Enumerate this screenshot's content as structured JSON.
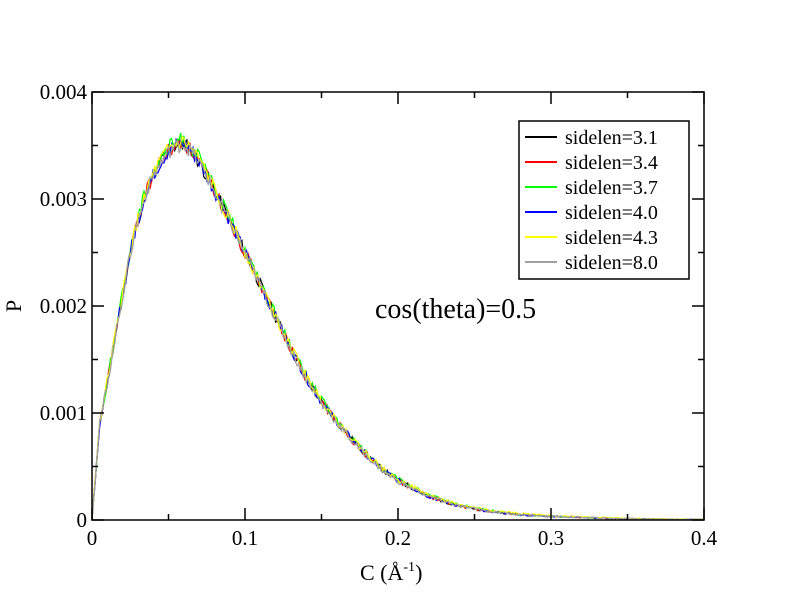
{
  "chart_data": {
    "type": "line",
    "xlabel": "C (Å",
    "xlabel_sup": "-1",
    "xlabel_tail": ")",
    "ylabel": "P",
    "xlim": [
      0,
      0.4
    ],
    "ylim": [
      0,
      0.004
    ],
    "x_ticks": [
      0,
      0.1,
      0.2,
      0.3,
      0.4
    ],
    "x_tick_labels": [
      "0",
      "0.1",
      "0.2",
      "0.3",
      "0.4"
    ],
    "y_ticks": [
      0,
      0.001,
      0.002,
      0.003,
      0.004
    ],
    "y_tick_labels": [
      "0",
      "0.001",
      "0.002",
      "0.003",
      "0.004"
    ],
    "annotation": "cos(theta)=0.5",
    "legend_position": "top-right",
    "grid": false,
    "x": [
      0,
      0.005,
      0.01,
      0.015,
      0.02,
      0.025,
      0.03,
      0.035,
      0.04,
      0.045,
      0.05,
      0.055,
      0.06,
      0.065,
      0.07,
      0.075,
      0.08,
      0.09,
      0.1,
      0.11,
      0.12,
      0.13,
      0.14,
      0.15,
      0.16,
      0.17,
      0.18,
      0.19,
      0.2,
      0.22,
      0.24,
      0.26,
      0.28,
      0.3,
      0.32,
      0.34,
      0.36,
      0.38,
      0.4
    ],
    "series": [
      {
        "name": "sidelen=3.1",
        "color": "#000000",
        "values": [
          0,
          0.0009,
          0.00128,
          0.0017,
          0.0021,
          0.0025,
          0.0028,
          0.00305,
          0.00322,
          0.00335,
          0.00345,
          0.0035,
          0.00352,
          0.00345,
          0.00335,
          0.00322,
          0.00308,
          0.0028,
          0.0025,
          0.0022,
          0.0019,
          0.0016,
          0.00133,
          0.0011,
          0.00092,
          0.00075,
          0.0006,
          0.00047,
          0.00037,
          0.00022,
          0.00013,
          8e-05,
          5e-05,
          3.5e-05,
          2.5e-05,
          1.5e-05,
          1e-05,
          6e-06,
          4e-06
        ]
      },
      {
        "name": "sidelen=3.4",
        "color": "#ff0000",
        "values": [
          0,
          0.0009,
          0.00128,
          0.0017,
          0.0021,
          0.0025,
          0.0028,
          0.00305,
          0.00322,
          0.00335,
          0.00345,
          0.0035,
          0.00352,
          0.00345,
          0.00335,
          0.00322,
          0.00308,
          0.0028,
          0.0025,
          0.0022,
          0.0019,
          0.0016,
          0.00133,
          0.0011,
          0.00092,
          0.00075,
          0.0006,
          0.00047,
          0.00037,
          0.00022,
          0.00013,
          8e-05,
          5e-05,
          3.5e-05,
          2.5e-05,
          1.5e-05,
          1e-05,
          6e-06,
          4e-06
        ]
      },
      {
        "name": "sidelen=3.7",
        "color": "#00ff00",
        "values": [
          0,
          0.0009,
          0.0013,
          0.00172,
          0.00212,
          0.00252,
          0.00283,
          0.00308,
          0.00325,
          0.00338,
          0.00348,
          0.00354,
          0.00356,
          0.00348,
          0.00338,
          0.00325,
          0.0031,
          0.00282,
          0.00252,
          0.00222,
          0.00192,
          0.00162,
          0.00135,
          0.00112,
          0.00093,
          0.00076,
          0.00061,
          0.00048,
          0.00038,
          0.00023,
          0.00014,
          9e-05,
          5e-05,
          3.6e-05,
          2.6e-05,
          1.6e-05,
          1e-05,
          6e-06,
          4e-06
        ]
      },
      {
        "name": "sidelen=4.0",
        "color": "#0000ff",
        "values": [
          0,
          0.0009,
          0.00128,
          0.0017,
          0.0021,
          0.0025,
          0.0028,
          0.00305,
          0.00322,
          0.00335,
          0.00345,
          0.0035,
          0.00352,
          0.00345,
          0.00335,
          0.00322,
          0.00308,
          0.0028,
          0.0025,
          0.0022,
          0.0019,
          0.0016,
          0.00133,
          0.0011,
          0.00092,
          0.00075,
          0.0006,
          0.00047,
          0.00037,
          0.00022,
          0.00013,
          8e-05,
          5e-05,
          3.5e-05,
          2.5e-05,
          1.5e-05,
          1e-05,
          6e-06,
          4e-06
        ]
      },
      {
        "name": "sidelen=4.3",
        "color": "#ffff00",
        "values": [
          0,
          0.00092,
          0.0013,
          0.00171,
          0.00211,
          0.00251,
          0.00281,
          0.00306,
          0.00323,
          0.00336,
          0.00346,
          0.00351,
          0.00353,
          0.00346,
          0.00336,
          0.00323,
          0.00309,
          0.00281,
          0.00251,
          0.00221,
          0.00191,
          0.00161,
          0.00134,
          0.00111,
          0.00093,
          0.00076,
          0.00061,
          0.00048,
          0.00038,
          0.00023,
          0.00014,
          9e-05,
          6e-05,
          4e-05,
          3e-05,
          2e-05,
          1.2e-05,
          8e-06,
          5e-06
        ]
      },
      {
        "name": "sidelen=8.0",
        "color": "#a0a0a0",
        "values": [
          0,
          0.0009,
          0.00127,
          0.00169,
          0.00209,
          0.00249,
          0.00279,
          0.00304,
          0.00321,
          0.00334,
          0.00344,
          0.00349,
          0.00351,
          0.00344,
          0.00334,
          0.00321,
          0.00307,
          0.00279,
          0.00249,
          0.00219,
          0.00189,
          0.00159,
          0.00132,
          0.00109,
          0.00091,
          0.00074,
          0.00059,
          0.00046,
          0.00036,
          0.00022,
          0.00013,
          8e-05,
          5e-05,
          3.5e-05,
          2.5e-05,
          1.5e-05,
          1e-05,
          6e-06,
          4e-06
        ]
      }
    ]
  }
}
